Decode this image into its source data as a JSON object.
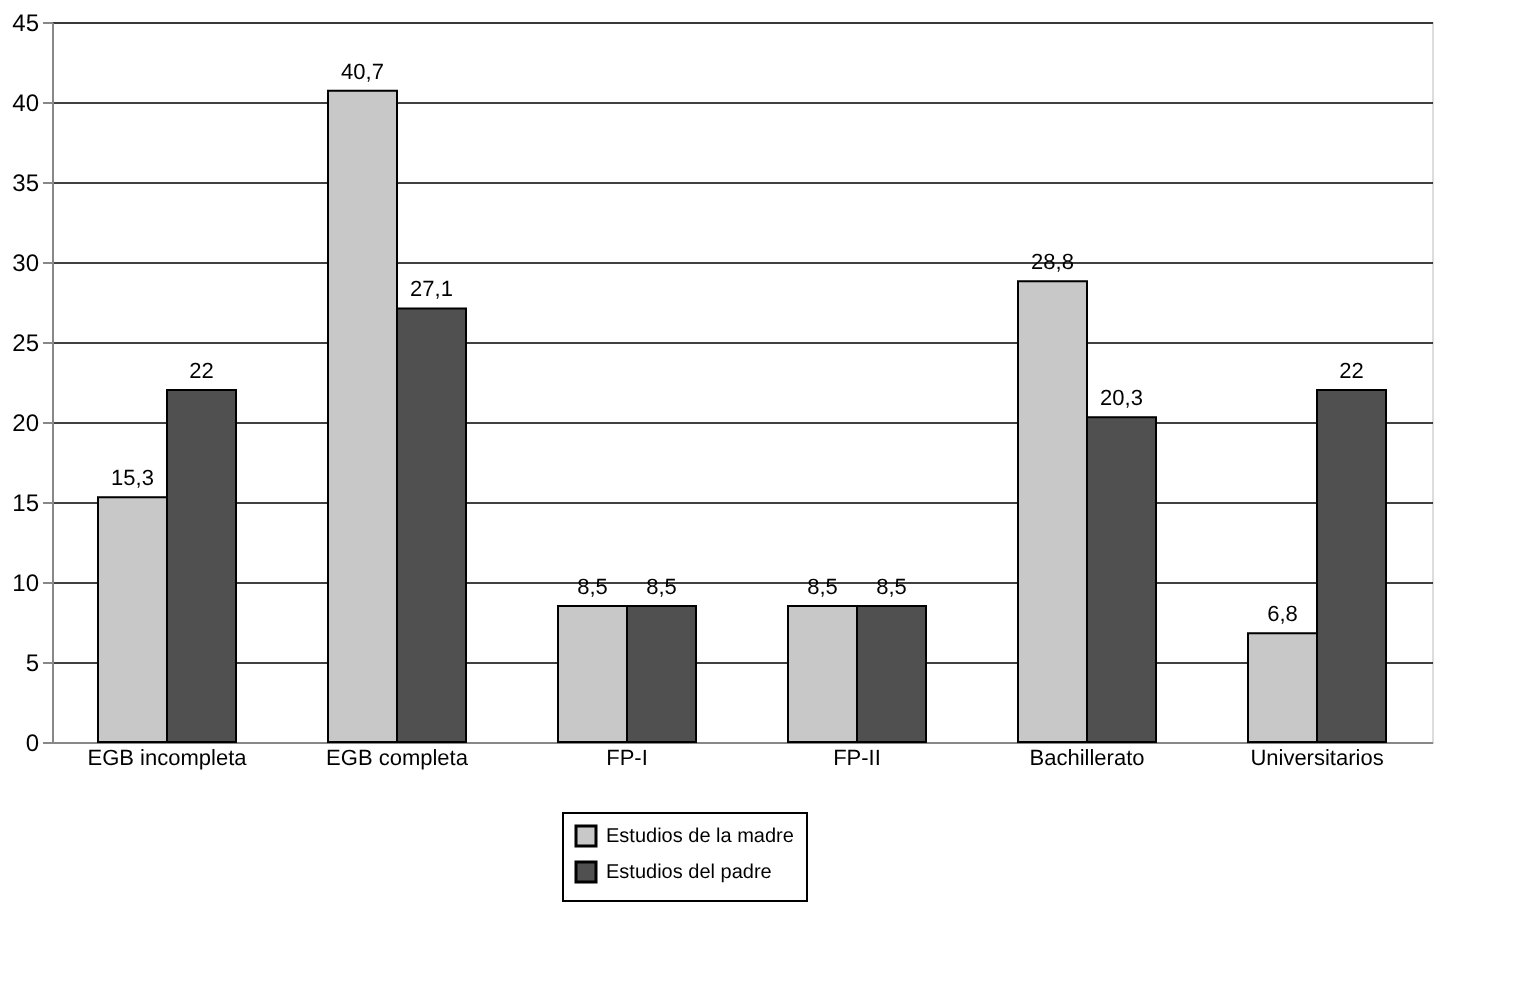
{
  "chart_data": {
    "type": "bar",
    "categories": [
      "EGB incompleta",
      "EGB completa",
      "FP-I",
      "FP-II",
      "Bachillerato",
      "Universitarios"
    ],
    "series": [
      {
        "name": "Estudios de la madre",
        "color": "#c8c8c8",
        "values": [
          15.3,
          40.7,
          8.5,
          8.5,
          28.8,
          6.8
        ],
        "value_labels": [
          "15,3",
          "40,7",
          "8,5",
          "8,5",
          "28,8",
          "6,8"
        ]
      },
      {
        "name": "Estudios del padre",
        "color": "#505050",
        "values": [
          22,
          27.1,
          8.5,
          8.5,
          20.3,
          22
        ],
        "value_labels": [
          "22",
          "27,1",
          "8,5",
          "8,5",
          "20,3",
          "22"
        ]
      }
    ],
    "ylim": [
      0,
      45
    ],
    "yticks": [
      0,
      5,
      10,
      15,
      20,
      25,
      30,
      35,
      40,
      45
    ],
    "grid": "y",
    "legend": "bottom"
  }
}
